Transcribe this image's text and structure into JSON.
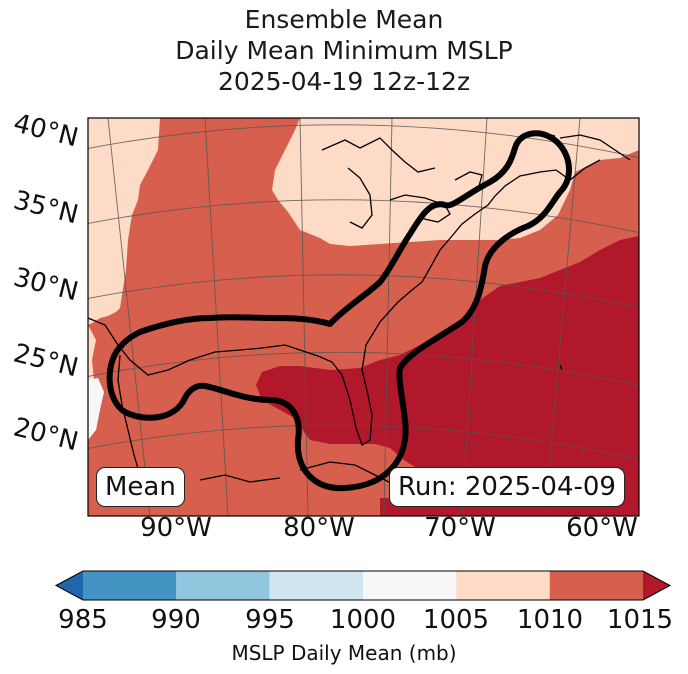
{
  "title": {
    "line1": "Ensemble Mean",
    "line2": "Daily Mean Minimum MSLP",
    "line3": "2025-04-19 12z-12z"
  },
  "map": {
    "lat_labels": [
      "40°N",
      "35°N",
      "30°N",
      "25°N",
      "20°N"
    ],
    "lon_labels": [
      "90°W",
      "80°W",
      "70°W",
      "60°W"
    ],
    "mean_box": "Mean",
    "run_box": "Run: 2025-04-09",
    "fill_colors": {
      "c1000_1005": "#f7f7f7",
      "c1005_1010": "#fddbc7",
      "c1010_1015": "#d6604d",
      "c1015_plus": "#b2182b",
      "coast": "#000000",
      "contour": "#000000"
    }
  },
  "colorbar": {
    "ticks": [
      "985",
      "990",
      "995",
      "1000",
      "1005",
      "1010",
      "1015"
    ],
    "label": "MSLP Daily Mean (mb)",
    "colors": [
      "#2166ac",
      "#4393c3",
      "#92c5de",
      "#d1e5f0",
      "#f7f7f7",
      "#fddbc7",
      "#d6604d",
      "#b2182b"
    ]
  }
}
